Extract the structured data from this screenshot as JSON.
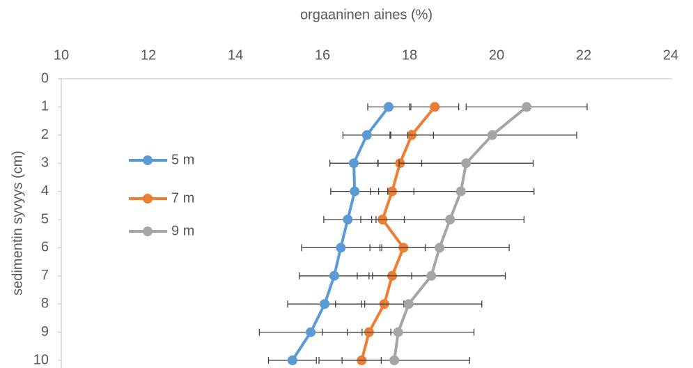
{
  "chart_data": {
    "type": "line",
    "title": "orgaaninen aines (%)",
    "y_label": "sedimentin syvyys (cm)",
    "y": [
      1,
      2,
      3,
      4,
      5,
      6,
      7,
      8,
      9,
      10
    ],
    "series": [
      {
        "name": "5 m",
        "color": "#5b9bd5",
        "values": [
          17.52,
          17.02,
          16.72,
          16.74,
          16.58,
          16.42,
          16.27,
          16.05,
          15.73,
          15.31
        ],
        "errors": [
          0.48,
          0.55,
          0.55,
          0.55,
          0.55,
          0.9,
          0.8,
          0.85,
          1.18,
          0.55
        ]
      },
      {
        "name": "7 m",
        "color": "#ed7d31",
        "values": [
          18.58,
          18.05,
          17.78,
          17.6,
          17.38,
          17.86,
          17.6,
          17.42,
          17.07,
          16.9
        ],
        "errors": [
          0.55,
          0.5,
          0.5,
          0.5,
          0.5,
          0.5,
          0.45,
          0.45,
          0.5,
          0.45
        ]
      },
      {
        "name": "9 m",
        "color": "#a5a5a5",
        "values": [
          20.69,
          19.9,
          19.3,
          19.18,
          18.93,
          18.69,
          18.5,
          17.98,
          17.74,
          17.65
        ],
        "errors": [
          1.39,
          1.94,
          1.54,
          1.68,
          1.7,
          1.6,
          1.7,
          1.68,
          1.74,
          1.73
        ]
      }
    ],
    "xlim": [
      10,
      24
    ],
    "xticks": [
      10,
      12,
      14,
      16,
      18,
      20,
      22,
      24
    ],
    "ylim": [
      0,
      10
    ],
    "yticks": [
      0,
      1,
      2,
      3,
      4,
      5,
      6,
      7,
      8,
      9,
      10
    ],
    "y_inverted": true,
    "x_axis_top": true,
    "legend": "left"
  }
}
